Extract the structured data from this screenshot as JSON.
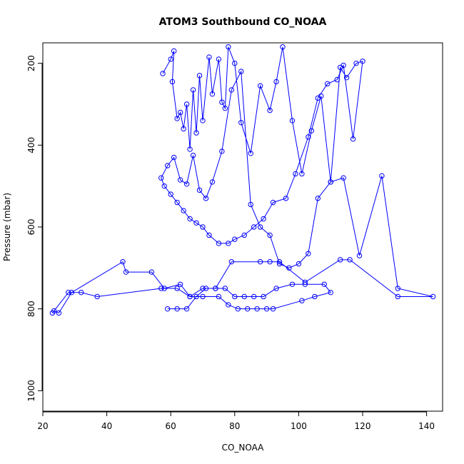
{
  "chart_data": {
    "type": "line",
    "title": "ATOM3 Southbound CO_NOAA",
    "xlabel": "CO_NOAA",
    "ylabel": "Pressure (mbar)",
    "xlim": [
      20,
      145
    ],
    "ylim": [
      1050,
      150
    ],
    "y_reversed": true,
    "grid": false,
    "legend": "none",
    "x_ticks": [
      20,
      40,
      60,
      80,
      100,
      120,
      140
    ],
    "y_ticks": [
      200,
      400,
      600,
      800,
      1000
    ],
    "line_color": "#0000ff",
    "marker": "open-circle",
    "series": [
      {
        "x": [
          57.5,
          60,
          61,
          60.5,
          62,
          63,
          64,
          65,
          66,
          67,
          68,
          69,
          70,
          72,
          73,
          75,
          76,
          77,
          78,
          80,
          82,
          85,
          88,
          91,
          93,
          95,
          98,
          101,
          104,
          107,
          110,
          113,
          115,
          118,
          120,
          117,
          114,
          112,
          109,
          106,
          103,
          99,
          96,
          92,
          89,
          86,
          83,
          80,
          78,
          75,
          72,
          70,
          68,
          66,
          64,
          62,
          60,
          58,
          57,
          59,
          61,
          63,
          65,
          67,
          69,
          71,
          73,
          76,
          79,
          82,
          85,
          88,
          91,
          94,
          97,
          100,
          103,
          106,
          110,
          114,
          119,
          126,
          131,
          142,
          131,
          116,
          113,
          102,
          94,
          91,
          88,
          79,
          74,
          70,
          66,
          63,
          58,
          54,
          46,
          45,
          29,
          25,
          23.5,
          23,
          28,
          32,
          37,
          57,
          62,
          66,
          70,
          75,
          78,
          81,
          84,
          87,
          90,
          92,
          101,
          105,
          110,
          108,
          102,
          98,
          93,
          89,
          86,
          83,
          80,
          77,
          74,
          71,
          68,
          65,
          62,
          59
        ],
        "y": [
          225,
          190,
          170,
          245,
          335,
          320,
          360,
          300,
          410,
          265,
          370,
          230,
          340,
          185,
          275,
          190,
          295,
          310,
          160,
          200,
          345,
          420,
          255,
          315,
          245,
          160,
          340,
          470,
          365,
          280,
          490,
          210,
          235,
          200,
          195,
          385,
          205,
          240,
          250,
          285,
          380,
          470,
          530,
          540,
          580,
          600,
          620,
          630,
          640,
          640,
          620,
          600,
          590,
          580,
          560,
          540,
          520,
          500,
          480,
          450,
          430,
          485,
          495,
          425,
          510,
          530,
          490,
          415,
          265,
          220,
          545,
          600,
          620,
          690,
          700,
          690,
          665,
          530,
          490,
          480,
          670,
          475,
          750,
          770,
          770,
          680,
          680,
          735,
          685,
          685,
          685,
          685,
          750,
          750,
          770,
          740,
          750,
          710,
          710,
          685,
          760,
          810,
          805,
          810,
          760,
          760,
          770,
          750,
          750,
          770,
          770,
          770,
          790,
          800,
          800,
          800,
          800,
          800,
          780,
          770,
          760,
          740,
          740,
          740,
          750,
          770,
          770,
          770,
          770,
          750,
          750,
          750,
          770,
          800,
          800,
          800
        ]
      }
    ]
  }
}
